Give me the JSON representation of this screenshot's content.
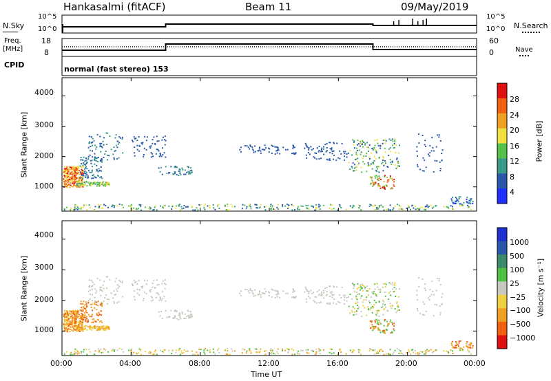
{
  "header": {
    "station": "Hankasalmi (fitACF)",
    "beam": "Beam 11",
    "date": "09/May/2019"
  },
  "summary_panels": {
    "nsky_label": "N.Sky",
    "nsky_ticks": [
      "10^5",
      "10^0"
    ],
    "nsearch_label": "N.Search",
    "freq_label_1": "Freq.",
    "freq_label_2": "[MHz]",
    "freq_ticks": [
      "18",
      "8"
    ],
    "nave_label": "Nave",
    "nave_ticks": [
      "60",
      "0"
    ],
    "cpid_label": "CPID",
    "cpid_value": "normal (fast stereo) 153"
  },
  "chart_data": [
    {
      "type": "heatmap",
      "name": "power",
      "ylabel": "Slant Range [km]",
      "ylim": [
        200,
        4600
      ],
      "yticks": [
        "1000",
        "2000",
        "3000",
        "4000"
      ],
      "colorbar_label": "Power [dB]",
      "colorbar_ticks": [
        "4",
        "8",
        "12",
        "16",
        "20",
        "24",
        "28"
      ],
      "colors": [
        "#1f2fff",
        "#2a58a8",
        "#3a9a8a",
        "#54c24a",
        "#f0e040",
        "#f0a020",
        "#f06010",
        "#e01010"
      ]
    },
    {
      "type": "heatmap",
      "name": "velocity",
      "ylabel": "Slant Range [km]",
      "ylim": [
        200,
        4600
      ],
      "yticks": [
        "1000",
        "2000",
        "3000",
        "4000"
      ],
      "colorbar_label": "Velocity [m s⁻¹]",
      "colorbar_ticks": [
        "1000",
        "500",
        "100",
        "25",
        "−25",
        "−100",
        "−500",
        "−1000"
      ],
      "colors": [
        "#1f2fd0",
        "#2a58a8",
        "#3a8a6a",
        "#50c040",
        "#c8c8c0",
        "#f0d040",
        "#f0a020",
        "#f06010",
        "#e01010"
      ]
    }
  ],
  "time_axis": {
    "xlabel": "Time UT",
    "ticks": [
      "00:00",
      "04:00",
      "08:00",
      "12:00",
      "16:00",
      "20:00",
      "00:00"
    ]
  }
}
